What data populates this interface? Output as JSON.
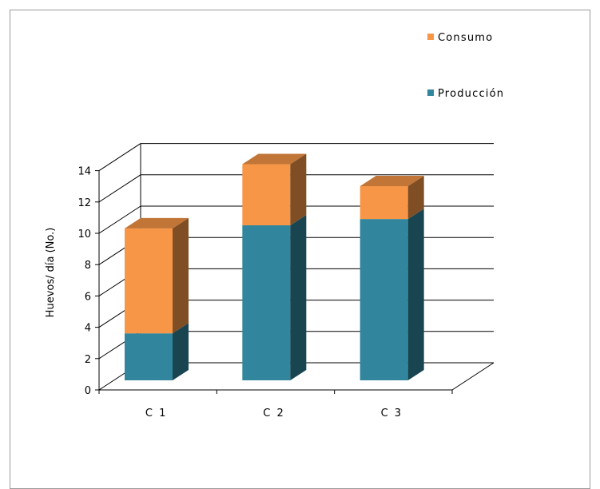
{
  "chart_data": {
    "type": "bar",
    "stacked": true,
    "three_d": true,
    "categories": [
      "C 1",
      "C 2",
      "C 3"
    ],
    "series": [
      {
        "name": "Producción",
        "values": [
          3.0,
          9.9,
          10.3
        ],
        "color": "#31859c"
      },
      {
        "name": "Consumo",
        "values": [
          6.7,
          3.9,
          2.1
        ],
        "color": "#f79646"
      }
    ],
    "ylabel": "Huevos/ día (No.)",
    "xlabel": "",
    "ylim": [
      0,
      14
    ],
    "yticks": [
      0,
      2,
      4,
      6,
      8,
      10,
      12,
      14
    ],
    "grid": true,
    "legend_position": "top-right",
    "legend_order": [
      "Consumo",
      "Producción"
    ]
  }
}
